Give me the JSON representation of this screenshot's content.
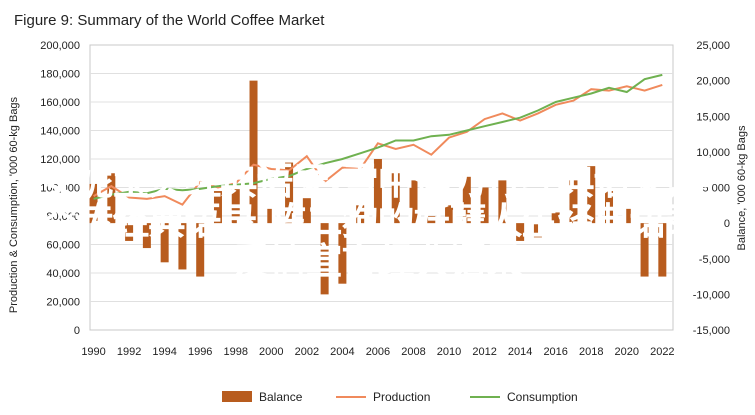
{
  "chart_data": {
    "type": "bar+line",
    "title": "Figure 9: Summary of the World Coffee Market",
    "ylabel_left": "Production & Consumption, '000 60-kg Bags",
    "ylabel_right": "Balance, '000 60-kg Bags",
    "ylim_left": [
      0,
      200000
    ],
    "ylim_right": [
      -15000,
      25000
    ],
    "y_ticks_left": [
      "0",
      "20,000",
      "40,000",
      "60,000",
      "80,000",
      "100,000",
      "120,000",
      "140,000",
      "160,000",
      "180,000",
      "200,000"
    ],
    "y_ticks_right": [
      "-15,000",
      "-10,000",
      "-5,000",
      "0",
      "5,000",
      "10,000",
      "15,000",
      "20,000",
      "25,000"
    ],
    "x_ticks": [
      "1990",
      "1992",
      "1994",
      "1996",
      "1998",
      "2000",
      "2002",
      "2004",
      "2006",
      "2008",
      "2010",
      "2012",
      "2014",
      "2016",
      "2018",
      "2020",
      "2022"
    ],
    "years": [
      1990,
      1991,
      1992,
      1993,
      1994,
      1995,
      1996,
      1997,
      1998,
      1999,
      2000,
      2001,
      2002,
      2003,
      2004,
      2005,
      2006,
      2007,
      2008,
      2009,
      2010,
      2011,
      2012,
      2013,
      2014,
      2015,
      2016,
      2017,
      2018,
      2019,
      2020,
      2021,
      2022
    ],
    "series": [
      {
        "name": "Balance",
        "type": "bar",
        "color": "#b85c1e",
        "axis": "right",
        "values": [
          5500,
          7000,
          -2500,
          -3500,
          -5500,
          -6500,
          -7500,
          4500,
          5000,
          20000,
          2000,
          8500,
          3500,
          -10000,
          -8500,
          2500,
          9000,
          7000,
          6000,
          1000,
          2500,
          6500,
          5000,
          6000,
          -2500,
          -2000,
          1500,
          6000,
          8000,
          4500,
          2000,
          -7500,
          -7500
        ]
      },
      {
        "name": "Production",
        "type": "line",
        "color": "#f08a5c",
        "axis": "left",
        "values": [
          94000,
          101000,
          93000,
          92000,
          94000,
          88000,
          104000,
          100000,
          103000,
          116000,
          113000,
          112000,
          122000,
          104000,
          114000,
          113000,
          131000,
          127000,
          130000,
          123000,
          135000,
          139000,
          148000,
          152000,
          147000,
          152000,
          158000,
          161000,
          169000,
          168000,
          171000,
          168000,
          172000
        ]
      },
      {
        "name": "Consumption",
        "type": "line",
        "color": "#6fb150",
        "axis": "left",
        "values": [
          92000,
          95000,
          97000,
          96000,
          99000,
          98000,
          99000,
          101000,
          102000,
          103000,
          106000,
          108000,
          113000,
          117000,
          120000,
          124000,
          128000,
          133000,
          133000,
          136000,
          137000,
          140000,
          143000,
          146000,
          149000,
          154000,
          160000,
          163000,
          166000,
          170000,
          167000,
          176000,
          179000
        ]
      }
    ],
    "legend": "bottom"
  },
  "overlay_text": {
    "line1": "安妮宝贝经典语录,雪中悍刀行经典语录,悟",
    "line2": "空传经典语录,陈二狗的妖孽人生经典语录,",
    "line3": "爱情宣言经典语录"
  }
}
